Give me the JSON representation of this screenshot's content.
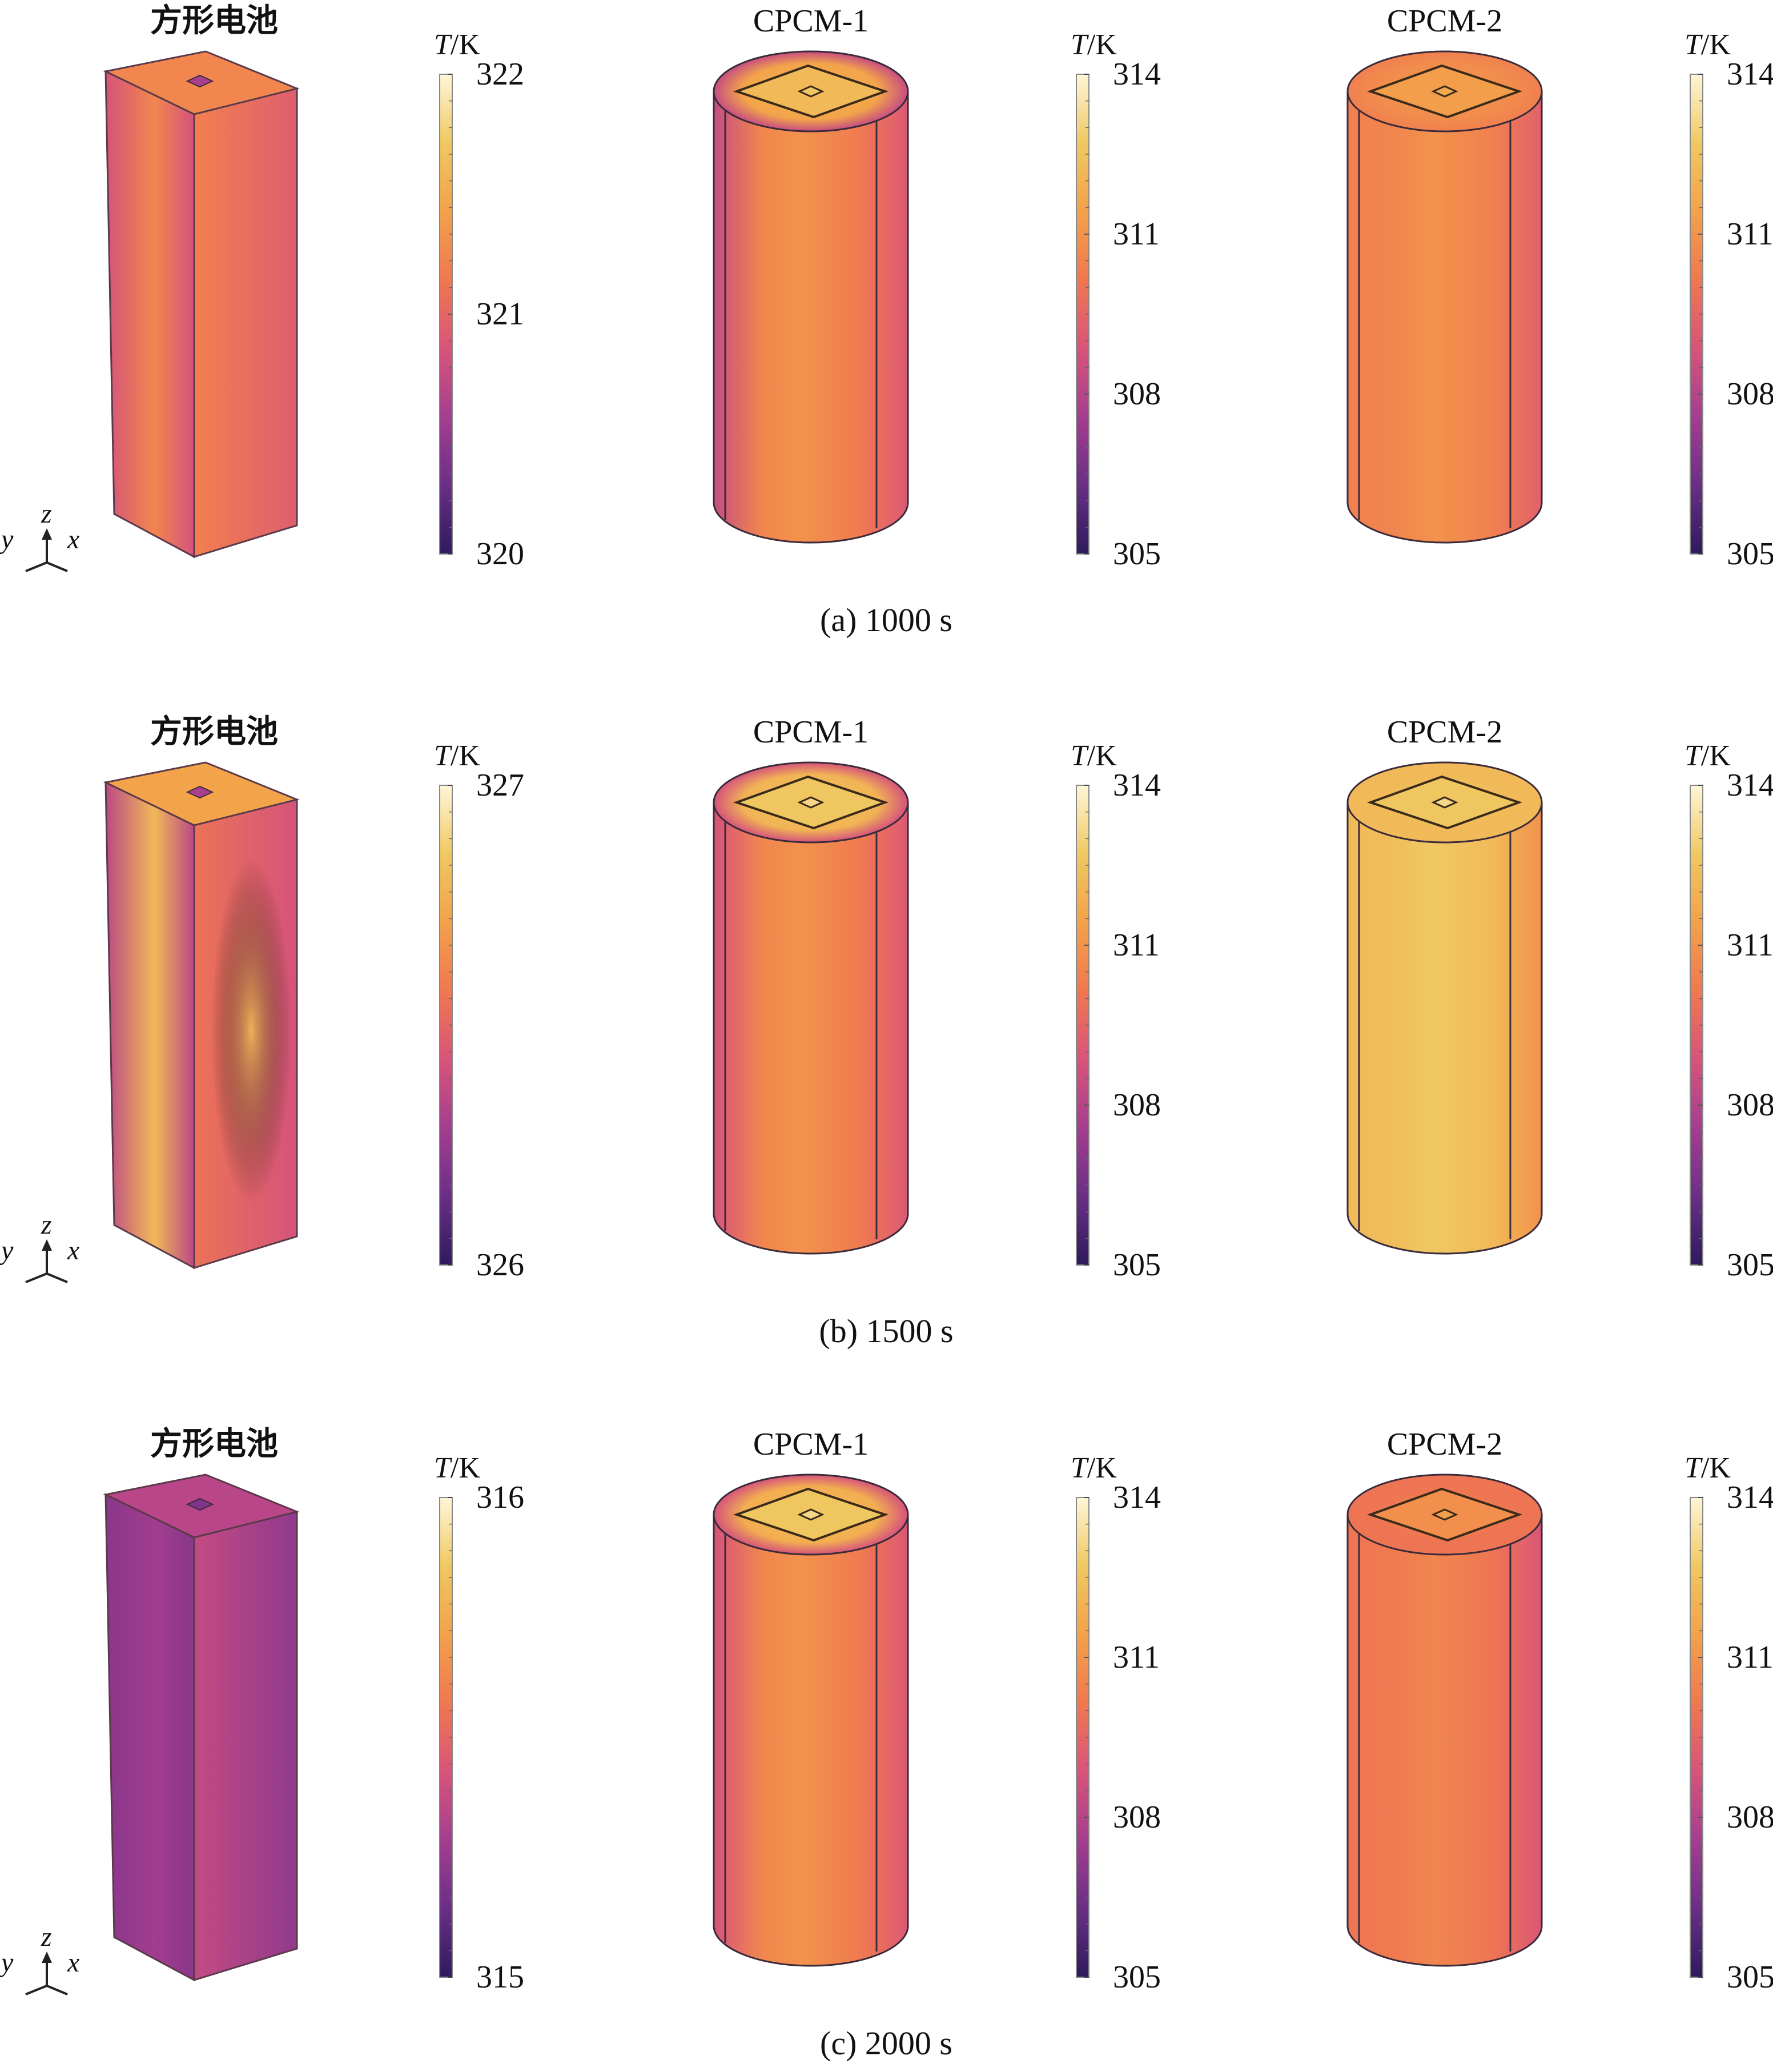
{
  "colormap": [
    "#2e1a5e",
    "#6a2f86",
    "#a43e90",
    "#d8547a",
    "#f07850",
    "#f3a24a",
    "#efc861",
    "#fff6d8"
  ],
  "axis_labels": {
    "z": "z",
    "y": "y",
    "x": "x"
  },
  "cbar_unit": {
    "t": "T",
    "k": "/K"
  },
  "rows": [
    {
      "caption": "(a) 1000 s",
      "panels": [
        {
          "title": "方形电池",
          "shape": "box",
          "range": [
            320,
            322
          ],
          "ticks": [
            "322",
            "321",
            "320"
          ],
          "levels": {
            "top": 0.62,
            "front": 0.45,
            "side": 0.55,
            "center": 0.62,
            "edge": 0.42,
            "window": 0.3
          }
        },
        {
          "title": "CPCM-1",
          "shape": "cylinder",
          "range": [
            305,
            314
          ],
          "ticks": [
            "314",
            "311",
            "308",
            "305"
          ],
          "levels": {
            "top": 0.72,
            "front": 0.62,
            "side": 0.55,
            "center": 0.66,
            "edge": 0.38,
            "window": 0.8
          }
        },
        {
          "title": "CPCM-2",
          "shape": "cylinder",
          "range": [
            305,
            314
          ],
          "ticks": [
            "314",
            "311",
            "308",
            "305"
          ],
          "levels": {
            "top": 0.64,
            "front": 0.64,
            "side": 0.58,
            "center": 0.66,
            "edge": 0.6,
            "window": 0.7
          }
        }
      ]
    },
    {
      "caption": "(b) 1500 s",
      "panels": [
        {
          "title": "方形电池",
          "shape": "box",
          "range": [
            326,
            327
          ],
          "ticks": [
            "327",
            "326"
          ],
          "levels": {
            "top": 0.72,
            "front": 0.35,
            "side": 0.5,
            "center": 0.8,
            "edge": 0.35,
            "window": 0.3
          }
        },
        {
          "title": "CPCM-1",
          "shape": "cylinder",
          "range": [
            305,
            314
          ],
          "ticks": [
            "314",
            "311",
            "308",
            "305"
          ],
          "levels": {
            "top": 0.78,
            "front": 0.62,
            "side": 0.55,
            "center": 0.66,
            "edge": 0.42,
            "window": 0.85
          }
        },
        {
          "title": "CPCM-2",
          "shape": "cylinder",
          "range": [
            305,
            314
          ],
          "ticks": [
            "314",
            "311",
            "308",
            "305"
          ],
          "levels": {
            "top": 0.8,
            "front": 0.84,
            "side": 0.76,
            "center": 0.86,
            "edge": 0.8,
            "window": 0.85
          }
        }
      ]
    },
    {
      "caption": "(c) 2000 s",
      "panels": [
        {
          "title": "方形电池",
          "shape": "box",
          "range": [
            315,
            316
          ],
          "ticks": [
            "316",
            "315"
          ],
          "levels": {
            "top": 0.34,
            "front": 0.22,
            "side": 0.32,
            "center": 0.28,
            "edge": 0.22,
            "window": 0.2
          }
        },
        {
          "title": "CPCM-1",
          "shape": "cylinder",
          "range": [
            305,
            314
          ],
          "ticks": [
            "314",
            "311",
            "308",
            "305"
          ],
          "levels": {
            "top": 0.76,
            "front": 0.62,
            "side": 0.55,
            "center": 0.66,
            "edge": 0.42,
            "window": 0.85
          }
        },
        {
          "title": "CPCM-2",
          "shape": "cylinder",
          "range": [
            305,
            314
          ],
          "ticks": [
            "314",
            "311",
            "308",
            "305"
          ],
          "levels": {
            "top": 0.56,
            "front": 0.6,
            "side": 0.54,
            "center": 0.62,
            "edge": 0.56,
            "window": 0.65
          }
        }
      ]
    }
  ]
}
